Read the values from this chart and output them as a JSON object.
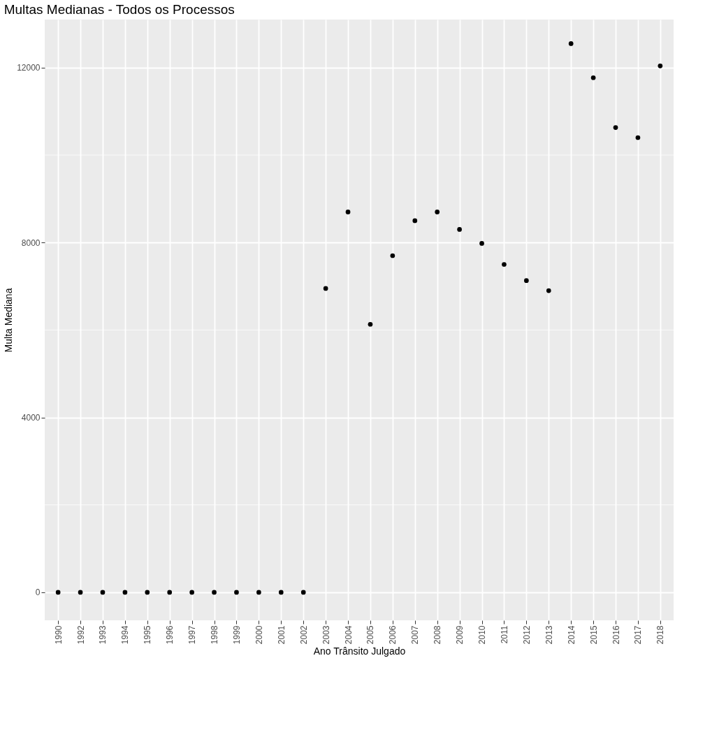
{
  "chart_data": {
    "type": "scatter",
    "title": "Multas Medianas - Todos os Processos",
    "xlabel": "Ano Trânsito Julgado",
    "ylabel": "Multa Mediana",
    "categories": [
      "1990",
      "1992",
      "1993",
      "1994",
      "1995",
      "1996",
      "1997",
      "1998",
      "1999",
      "2000",
      "2001",
      "2002",
      "2003",
      "2004",
      "2005",
      "2006",
      "2007",
      "2008",
      "2009",
      "2010",
      "2011",
      "2012",
      "2013",
      "2014",
      "2015",
      "2016",
      "2017",
      "2018"
    ],
    "series": [
      {
        "color": "#000000",
        "values": [
          0,
          0,
          0,
          0,
          0,
          0,
          0,
          0,
          0,
          0,
          0,
          0,
          6950,
          8700,
          6130,
          7700,
          8500,
          8700,
          8300,
          7980,
          7500,
          7130,
          6900,
          12550,
          11770,
          10630,
          10400,
          12040
        ]
      }
    ],
    "ylim": [
      -640,
      13100
    ],
    "yticks": [
      0,
      {
        "value": 2000,
        "label": null
      },
      4000,
      {
        "value": 6000,
        "label": null
      },
      8000,
      {
        "value": 10000,
        "label": null
      },
      12000
    ],
    "grid": true,
    "marker": "circle"
  }
}
